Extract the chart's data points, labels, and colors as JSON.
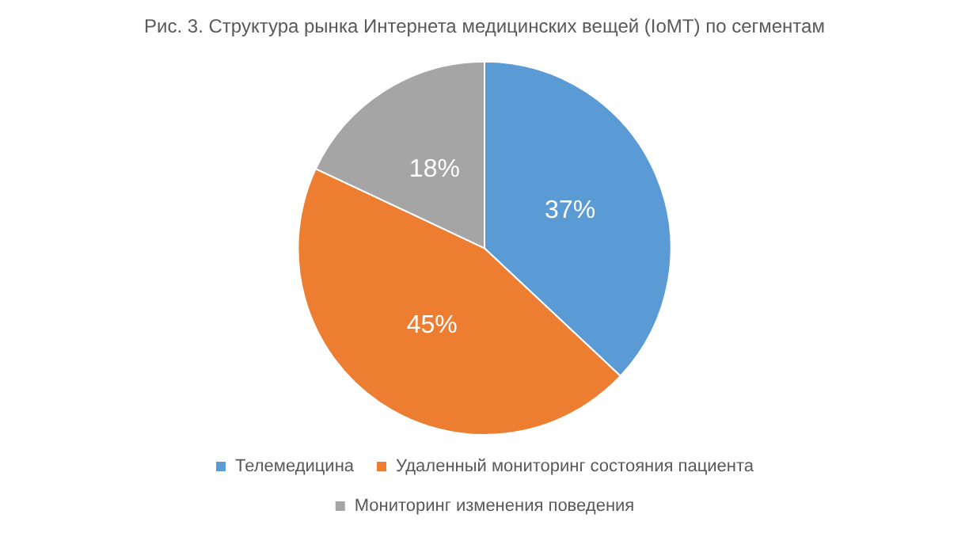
{
  "chart_data": {
    "type": "pie",
    "title": "Рис. 3. Структура рынка Интернета медицинских вещей (IoMT) по сегментам",
    "categories": [
      "Телемедицина",
      "Удаленный мониторинг состояния пациента",
      "Мониторинг изменения поведения"
    ],
    "values": [
      37,
      45,
      18
    ],
    "value_labels": [
      "37%",
      "45%",
      "18%"
    ],
    "colors": [
      "#5b9bd5",
      "#ed7d31",
      "#a5a5a5"
    ],
    "legend": "bottom"
  }
}
